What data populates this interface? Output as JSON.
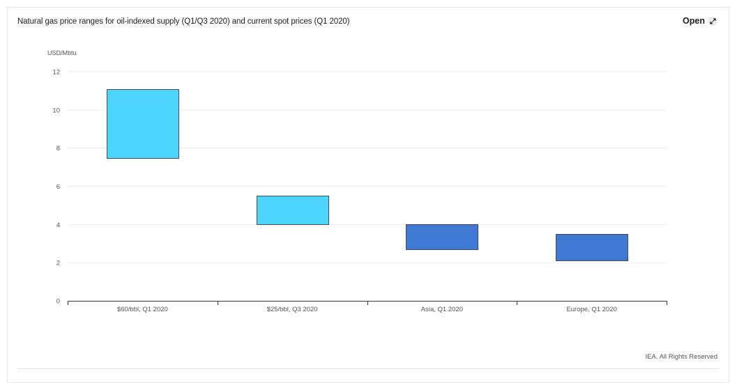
{
  "header": {
    "title": "Natural gas price ranges for oil-indexed supply (Q1/Q3 2020) and current spot prices (Q1 2020)",
    "open_label": "Open",
    "open_icon": "expand-arrows-icon"
  },
  "footer": {
    "credit": "IEA. All Rights Reserved"
  },
  "chart_data": {
    "type": "bar",
    "subtype": "floating-range",
    "title": "Natural gas price ranges for oil-indexed supply (Q1/Q3 2020) and current spot prices (Q1 2020)",
    "ylabel": "USD/Mbtu",
    "xlabel": "",
    "ylim": [
      0,
      12
    ],
    "yticks": [
      "0",
      "2",
      "4",
      "6",
      "8",
      "10",
      "12"
    ],
    "grid": true,
    "legend": "none",
    "categories": [
      "$60/bbl, Q1 2020",
      "$25/bbl, Q3 2020",
      "Asia, Q1 2020",
      "Europe, Q1 2020"
    ],
    "ranges": [
      {
        "low": 7.5,
        "high": 11.1,
        "color": "#4dd4fc"
      },
      {
        "low": 4.0,
        "high": 5.5,
        "color": "#4dd4fc"
      },
      {
        "low": 2.7,
        "high": 4.0,
        "color": "#3f79d4"
      },
      {
        "low": 2.1,
        "high": 3.5,
        "color": "#3f79d4"
      }
    ]
  }
}
